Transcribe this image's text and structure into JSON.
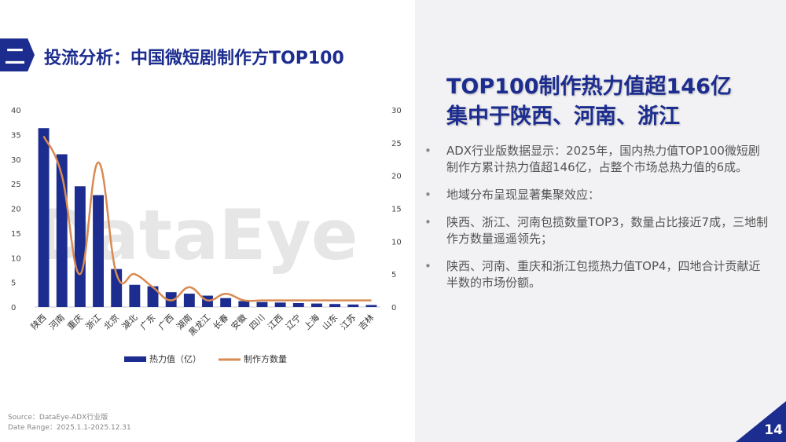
{
  "section": {
    "number": "二",
    "title": "投流分析：中国微短剧制作方TOP100"
  },
  "headline": {
    "line1": "TOP100制作热力值超146亿",
    "line2": "集中于陕西、河南、浙江"
  },
  "bullets": [
    "ADX行业版数据显示：2025年，国内热力值TOP100微短剧制作方累计热力值超146亿，占整个市场总热力值的6成。",
    "地域分布呈现显著集聚效应：",
    "陕西、浙江、河南包揽数量TOP3，数量占比接近7成，三地制作方数量遥遥领先；",
    "陕西、河南、重庆和浙江包揽热力值TOP4，四地合计贡献近半数的市场份额。"
  ],
  "watermark": "DataEye",
  "source": {
    "line1": "Source：DataEye-ADX行业版",
    "line2": "Date Range：2025.1.1-2025.12.31"
  },
  "page_number": "14",
  "colors": {
    "brand": "#1c2d8f",
    "bar": "#1c2d8f",
    "line": "#d98a52"
  },
  "chart_data": {
    "type": "bar",
    "categories": [
      "陕西",
      "河南",
      "重庆",
      "浙江",
      "北京",
      "湖北",
      "广东",
      "广西",
      "湖南",
      "黑龙江",
      "长春",
      "安徽",
      "四川",
      "江西",
      "辽宁",
      "上海",
      "山东",
      "江苏",
      "吉林"
    ],
    "series": [
      {
        "name": "热力值（亿）",
        "type": "bar",
        "axis": "left",
        "values": [
          36.3,
          31,
          24.5,
          22.7,
          7.7,
          4.5,
          4.2,
          3,
          2.7,
          2.3,
          1.8,
          1.2,
          1,
          0.9,
          0.8,
          0.7,
          0.6,
          0.5,
          0.4
        ]
      },
      {
        "name": "制作方数量",
        "type": "line",
        "axis": "right",
        "values": [
          26,
          20,
          5,
          22,
          5,
          5,
          3,
          1,
          3,
          1,
          2,
          1,
          1,
          1,
          1,
          1,
          1,
          1,
          1
        ]
      }
    ],
    "ylim_left": [
      0,
      40
    ],
    "yticks_left": [
      0,
      5,
      10,
      15,
      20,
      25,
      30,
      35,
      40
    ],
    "ylim_right": [
      0,
      30
    ],
    "yticks_right": [
      0,
      5,
      10,
      15,
      20,
      25,
      30
    ],
    "legend": "bottom",
    "grid": false
  }
}
